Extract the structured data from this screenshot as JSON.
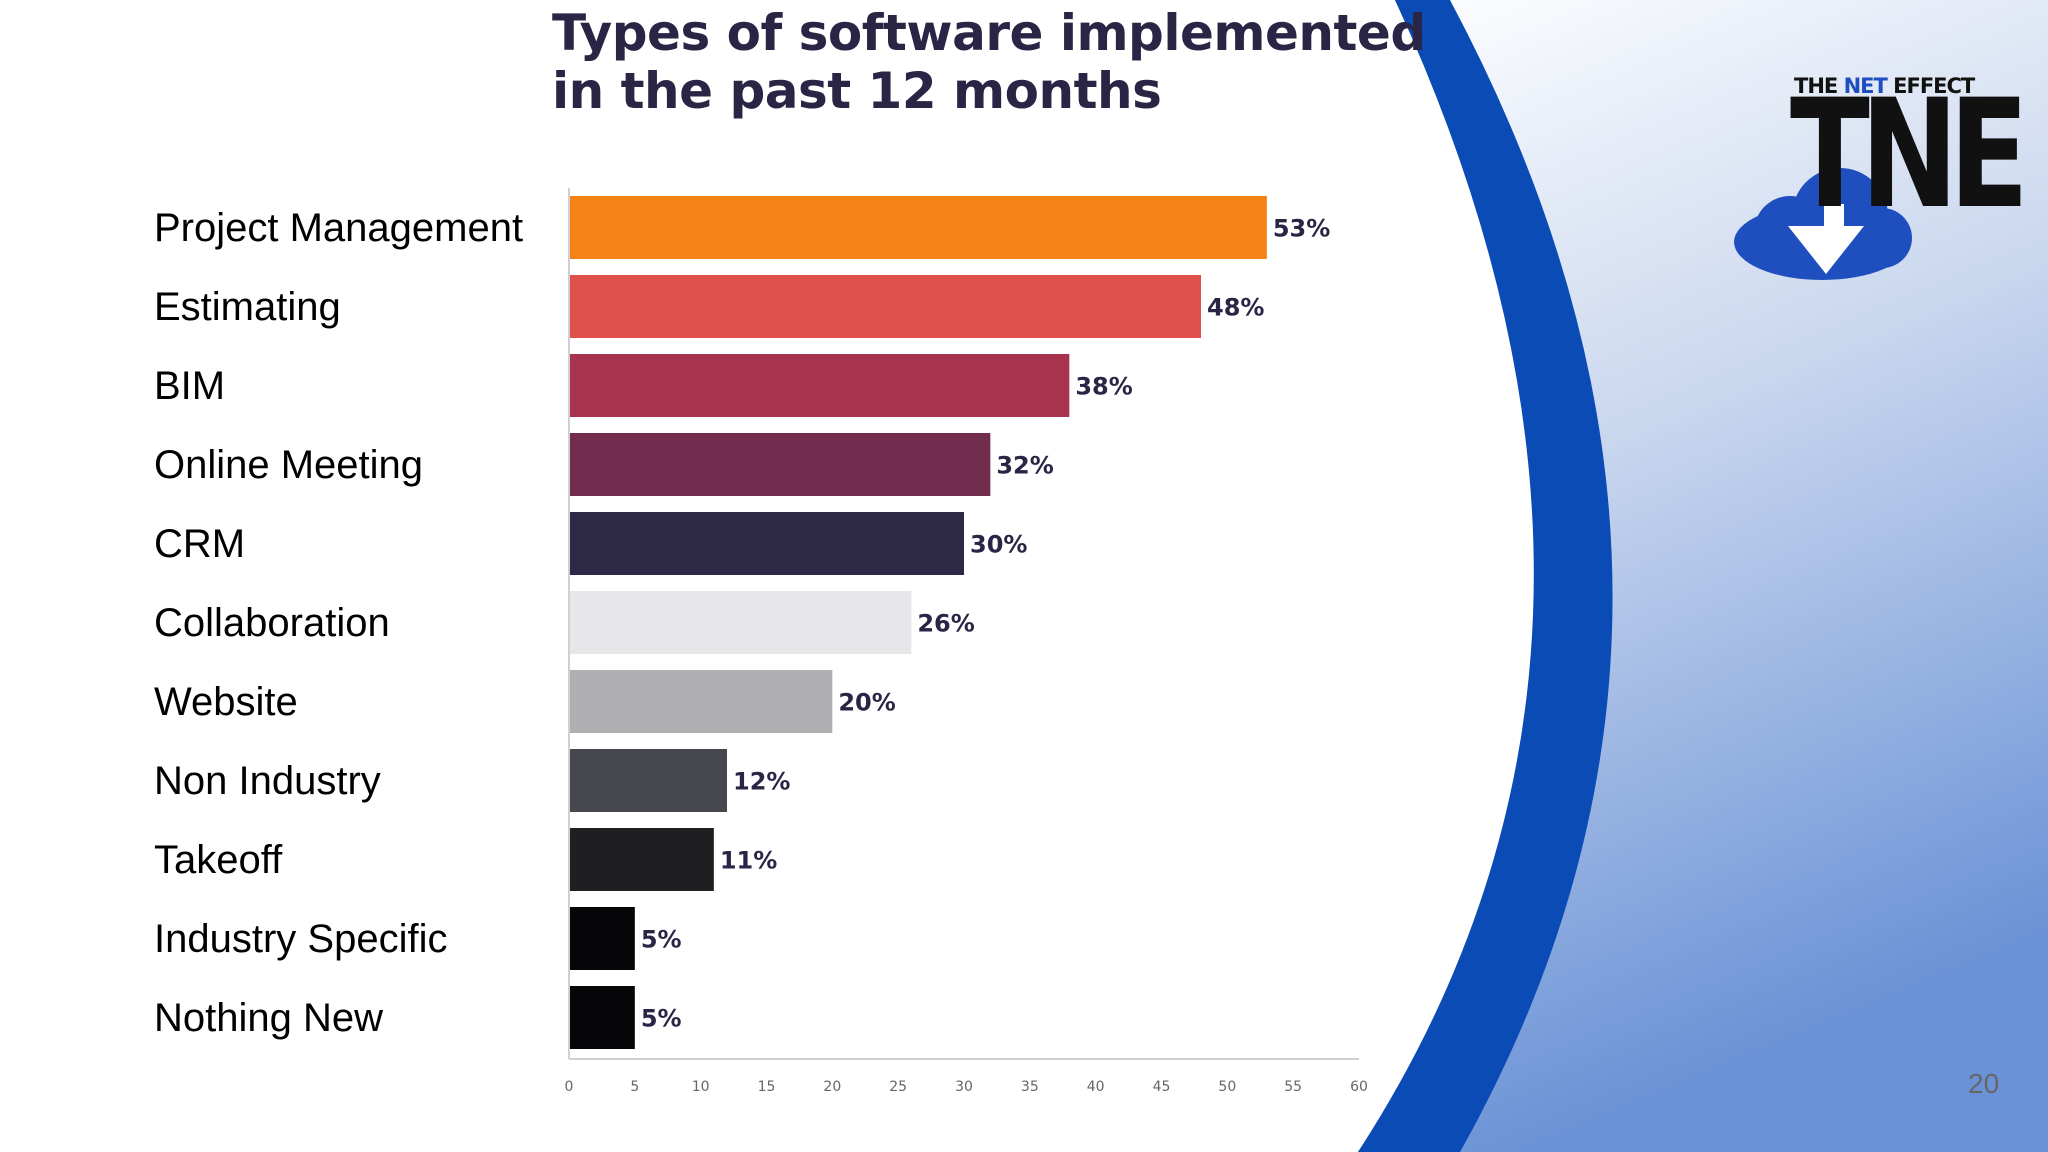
{
  "slide": {
    "title_line1": "Types of software implemented",
    "title_line2": "in the past 12 months",
    "page_number": "20"
  },
  "logo": {
    "top_the": "THE",
    "top_net": "NET",
    "top_effect": "EFFECT",
    "big": "TNE",
    "colors": {
      "cloud": "#1f4fbf",
      "text": "#111111"
    }
  },
  "chart_data": {
    "type": "bar",
    "orientation": "horizontal",
    "title": "Types of software implemented in the past 12 months",
    "categories": [
      "Project Management",
      "Estimating",
      "BIM",
      "Online Meeting",
      "CRM",
      "Collaboration",
      "Website",
      "Non Industry",
      "Takeoff",
      "Industry Specific",
      "Nothing New"
    ],
    "values": [
      53,
      48,
      38,
      32,
      30,
      26,
      20,
      12,
      11,
      5,
      5
    ],
    "data_labels": [
      "53%",
      "48%",
      "38%",
      "32%",
      "30%",
      "26%",
      "20%",
      "12%",
      "11%",
      "5%",
      "5%"
    ],
    "bar_colors": [
      "#f28314",
      "#e0504a",
      "#a8334f",
      "#722c4e",
      "#2e2847",
      "#e7e7ea",
      "#b0b0b2",
      "#46484d",
      "#1f1f21",
      "#060608",
      "#060608"
    ],
    "xlim": [
      0,
      60
    ],
    "xticks": [
      "0",
      "5",
      "10",
      "15",
      "20",
      "25",
      "30",
      "35",
      "40",
      "45",
      "50",
      "55",
      "60"
    ],
    "grid": false,
    "legend": "none"
  }
}
